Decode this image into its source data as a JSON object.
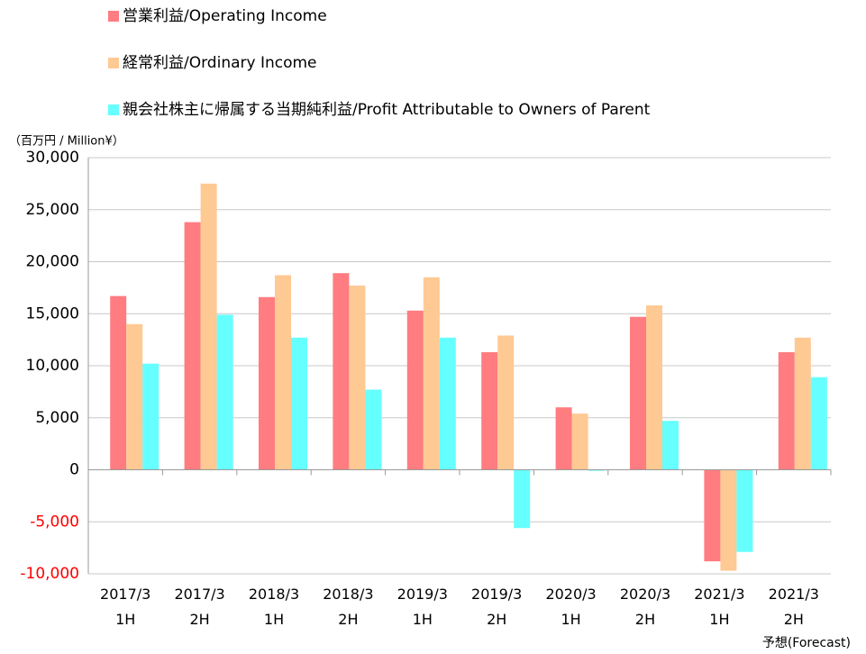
{
  "chart_data": {
    "type": "bar",
    "y_unit_label": "（百万円 / Million¥）",
    "annotation": "予想(Forecast)",
    "categories": [
      "2017/3\n1H",
      "2017/3\n2H",
      "2018/3\n1H",
      "2018/3\n2H",
      "2019/3\n1H",
      "2019/3\n2H",
      "2020/3\n1H",
      "2020/3\n2H",
      "2021/3\n1H",
      "2021/3\n2H"
    ],
    "series": [
      {
        "name": "営業利益/Operating Income",
        "color": "#ff7c80",
        "values": [
          16700,
          23800,
          16600,
          18900,
          15300,
          11300,
          6000,
          14700,
          -8800,
          11300
        ]
      },
      {
        "name": "経常利益/Ordinary Income",
        "color": "#ffc993",
        "values": [
          14000,
          27500,
          18700,
          17700,
          18500,
          12900,
          5400,
          15800,
          -9700,
          12700
        ]
      },
      {
        "name": "親会社株主に帰属する当期純利益/Profit Attributable to Owners of Parent",
        "color": "#66ffff",
        "values": [
          10200,
          14900,
          12700,
          7700,
          12700,
          -5600,
          -100,
          4700,
          -7900,
          8900
        ]
      }
    ],
    "ylim": [
      -10000,
      30000
    ],
    "yticks": [
      {
        "value": -10000,
        "label": "-10,000"
      },
      {
        "value": -5000,
        "label": "-5,000"
      },
      0,
      {
        "value": 5000,
        "label": "5,000"
      },
      {
        "value": 10000,
        "label": "10,000"
      },
      {
        "value": 15000,
        "label": "15,000"
      },
      {
        "value": 20000,
        "label": "20,000"
      },
      {
        "value": 25000,
        "label": "25,000"
      },
      {
        "value": 30000,
        "label": "30,000"
      }
    ],
    "negative_tick_color": "#ff0000",
    "grid": true
  }
}
